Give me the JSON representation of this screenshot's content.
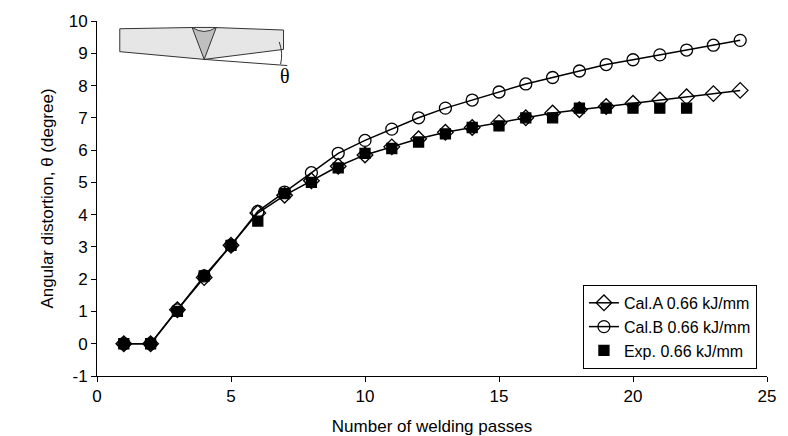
{
  "chart_data": {
    "type": "line",
    "x_label": "Number of welding passes",
    "y_label": "Angular distortion, θ (degree)",
    "annotations": [
      "θ"
    ],
    "xlim": [
      0,
      25
    ],
    "xticks": [
      0,
      5,
      10,
      15,
      20,
      25
    ],
    "ylim": [
      -1,
      10
    ],
    "yticks": [
      -1,
      0,
      1,
      2,
      3,
      4,
      5,
      6,
      7,
      8,
      9,
      10
    ],
    "grid": false,
    "legend": "lower right",
    "series": [
      {
        "name": "Cal.A 0.66 kJ/mm",
        "color": "#000000",
        "marker": "open-diamond",
        "line_style": "solid",
        "x": [
          1,
          2,
          3,
          4,
          5,
          6,
          7,
          8,
          9,
          10,
          11,
          12,
          13,
          14,
          15,
          16,
          17,
          18,
          19,
          20,
          21,
          22,
          23,
          24
        ],
        "values": [
          0,
          0,
          1.05,
          2.05,
          3.05,
          4.05,
          4.6,
          5.05,
          5.5,
          5.85,
          6.1,
          6.35,
          6.55,
          6.7,
          6.85,
          7.0,
          7.15,
          7.25,
          7.35,
          7.45,
          7.55,
          7.65,
          7.75,
          7.85
        ]
      },
      {
        "name": "Cal.B 0.66 kJ/mm",
        "color": "#000000",
        "marker": "open-circle",
        "line_style": "solid",
        "x": [
          1,
          2,
          3,
          4,
          5,
          6,
          7,
          8,
          9,
          10,
          11,
          12,
          13,
          14,
          15,
          16,
          17,
          18,
          19,
          20,
          21,
          22,
          23,
          24
        ],
        "values": [
          0,
          0,
          1.05,
          2.1,
          3.05,
          4.1,
          4.7,
          5.3,
          5.9,
          6.3,
          6.65,
          7.0,
          7.3,
          7.55,
          7.8,
          8.05,
          8.25,
          8.45,
          8.65,
          8.8,
          8.95,
          9.1,
          9.25,
          9.4
        ]
      },
      {
        "name": "Exp. 0.66 kJ/mm",
        "color": "#000000",
        "marker": "square",
        "line_style": "none",
        "x": [
          1,
          2,
          3,
          4,
          5,
          6,
          7,
          8,
          9,
          10,
          11,
          12,
          13,
          14,
          15,
          16,
          17,
          18,
          19,
          20,
          21,
          22
        ],
        "values": [
          0,
          0,
          1.0,
          2.1,
          3.05,
          3.8,
          4.65,
          5.0,
          5.45,
          5.9,
          6.05,
          6.25,
          6.5,
          6.7,
          6.75,
          7.0,
          7.0,
          7.3,
          7.3,
          7.3,
          7.3,
          7.3
        ]
      }
    ]
  }
}
